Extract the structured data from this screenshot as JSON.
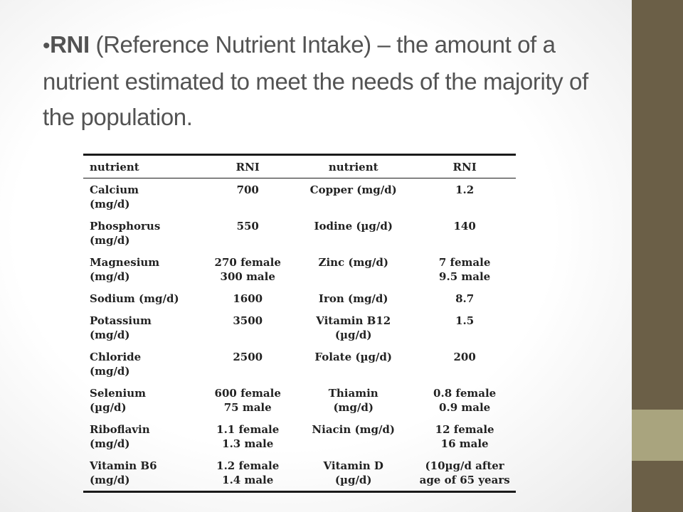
{
  "headline": {
    "bullet": "•",
    "term": "RNI",
    "rest": " (Reference Nutrient Intake) – the amount of a nutrient estimated to meet the needs of the majority of the population."
  },
  "colors": {
    "side_bar": "#6b5f47",
    "side_accent": "#a9a47e",
    "text": "#535353"
  },
  "table": {
    "headers": [
      "nutrient",
      "RNI",
      "nutrient",
      "RNI"
    ],
    "rows": [
      [
        "Calcium\n(mg/d)",
        "700",
        "Copper (mg/d)",
        "1.2"
      ],
      [
        "Phosphorus\n(mg/d)",
        "550",
        "Iodine (µg/d)",
        "140"
      ],
      [
        "Magnesium\n(mg/d)",
        "270 female\n300 male",
        "Zinc (mg/d)",
        "7 female\n9.5 male"
      ],
      [
        "Sodium (mg/d)",
        "1600",
        "Iron (mg/d)",
        "8.7"
      ],
      [
        "Potassium\n(mg/d)",
        "3500",
        "Vitamin B12\n(µg/d)",
        "1.5"
      ],
      [
        "Chloride\n(mg/d)",
        "2500",
        "Folate (µg/d)",
        "200"
      ],
      [
        "Selenium\n(µg/d)",
        "600 female\n75 male",
        "Thiamin\n(mg/d)",
        "0.8 female\n0.9 male"
      ],
      [
        "Riboflavin\n(mg/d)",
        "1.1 female\n1.3 male",
        "Niacin (mg/d)",
        "12 female\n16 male"
      ],
      [
        "Vitamin B6\n(mg/d)",
        "1.2 female\n1.4 male",
        "Vitamin D\n(µg/d)",
        "(10µg/d after\nage of 65 years"
      ]
    ]
  }
}
